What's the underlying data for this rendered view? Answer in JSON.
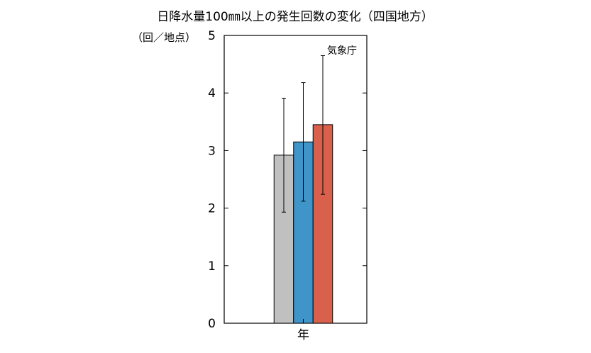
{
  "chart_data": {
    "type": "bar",
    "title": "日降水量100㎜以上の発生回数の変化（四国地方）",
    "ylabel": "（回／地点）",
    "annotation": "気象庁",
    "categories": [
      "年"
    ],
    "ylim": [
      0,
      5
    ],
    "yticks": [
      "0",
      "1",
      "2",
      "3",
      "4",
      "5"
    ],
    "grid": false,
    "series": [
      {
        "values": [
          2.92
        ],
        "error_low": [
          1.93
        ],
        "error_high": [
          3.91
        ],
        "color": "#c0c0c0"
      },
      {
        "values": [
          3.15
        ],
        "error_low": [
          2.12
        ],
        "error_high": [
          4.18
        ],
        "color": "#3f94c8"
      },
      {
        "values": [
          3.45
        ],
        "error_low": [
          2.24
        ],
        "error_high": [
          4.65
        ],
        "color": "#d9614c"
      }
    ]
  }
}
